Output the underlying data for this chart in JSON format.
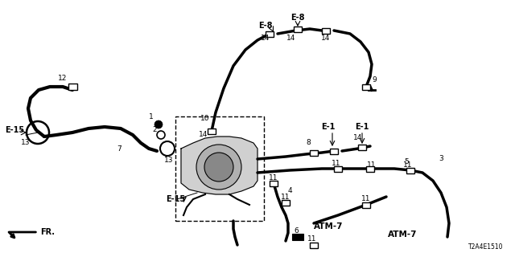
{
  "bg_color": "#ffffff",
  "line_color": "#000000",
  "part_number": "T2A4E1510",
  "figsize": [
    6.4,
    3.2
  ],
  "dpi": 100,
  "xlim": [
    0,
    640
  ],
  "ylim": [
    0,
    320
  ]
}
